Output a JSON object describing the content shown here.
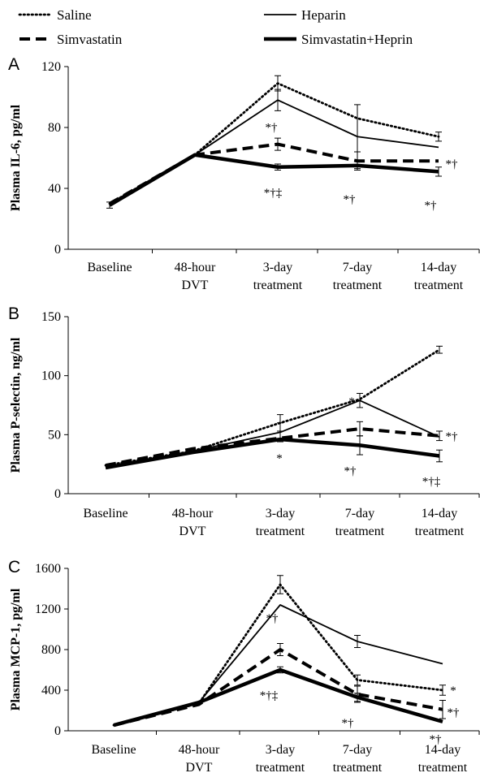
{
  "legend": [
    {
      "name": "Saline",
      "style": "dotted"
    },
    {
      "name": "Heparin",
      "style": "thin"
    },
    {
      "name": "Simvastatin",
      "style": "dashed"
    },
    {
      "name": "Simvastatin+Heprin",
      "style": "thick"
    }
  ],
  "chart_data": [
    {
      "type": "line",
      "panel": "A",
      "ylabel": "Plasma IL-6, pg/ml",
      "ylim": [
        0,
        120
      ],
      "yticks": [
        "0",
        "40",
        "80",
        "120"
      ],
      "categories": [
        [
          "Baseline"
        ],
        [
          "48-hour",
          "DVT"
        ],
        [
          "3-day",
          "treatment"
        ],
        [
          "7-day",
          "treatment"
        ],
        [
          "14-day",
          "treatment"
        ]
      ],
      "series": [
        {
          "name": "Saline",
          "values": [
            30,
            62,
            109,
            86,
            74
          ],
          "err": [
            0,
            0,
            5,
            0,
            3
          ]
        },
        {
          "name": "Heparin",
          "values": [
            30,
            62,
            98,
            74,
            67
          ],
          "err": [
            0,
            0,
            7,
            21,
            0
          ]
        },
        {
          "name": "Simvastatin",
          "values": [
            30,
            62,
            69,
            58,
            58
          ],
          "err": [
            0,
            0,
            4,
            6,
            0
          ]
        },
        {
          "name": "Simvastatin+Heprin",
          "values": [
            29,
            62,
            54,
            55,
            51
          ],
          "err": [
            2,
            0,
            2,
            0,
            3
          ]
        }
      ],
      "annotations": [
        "*†",
        "*†‡",
        "*†",
        "*†",
        "*†"
      ]
    },
    {
      "type": "line",
      "panel": "B",
      "ylabel": "Plasma P-selectin, ng/ml",
      "ylim": [
        0,
        150
      ],
      "yticks": [
        "0",
        "50",
        "100",
        "150"
      ],
      "categories": [
        [
          "Baseline"
        ],
        [
          "48-hour",
          "DVT"
        ],
        [
          "3-day",
          "treatment"
        ],
        [
          "7-day",
          "treatment"
        ],
        [
          "14-day",
          "treatment"
        ]
      ],
      "series": [
        {
          "name": "Saline",
          "values": [
            24,
            36,
            60,
            80,
            122
          ],
          "err": [
            0,
            0,
            7,
            0,
            3
          ]
        },
        {
          "name": "Heparin",
          "values": [
            22,
            36,
            52,
            79,
            48
          ],
          "err": [
            0,
            0,
            8,
            6,
            0
          ]
        },
        {
          "name": "Simvastatin",
          "values": [
            24,
            38,
            47,
            55,
            49
          ],
          "err": [
            0,
            0,
            0,
            6,
            4
          ]
        },
        {
          "name": "Simvastatin+Heprin",
          "values": [
            22,
            35,
            46,
            41,
            32
          ],
          "err": [
            0,
            0,
            0,
            8,
            5
          ]
        }
      ],
      "annotations": [
        "*",
        "*†",
        "*",
        "*†",
        "*†‡"
      ]
    },
    {
      "type": "line",
      "panel": "C",
      "ylabel": "Plasma MCP-1, pg/ml",
      "ylim": [
        0,
        1600
      ],
      "yticks": [
        "0",
        "400",
        "800",
        "1200",
        "1600"
      ],
      "categories": [
        [
          "Baseline"
        ],
        [
          "48-hour",
          "DVT"
        ],
        [
          "3-day",
          "treatment"
        ],
        [
          "7-day",
          "treatment"
        ],
        [
          "14-day",
          "treatment"
        ]
      ],
      "series": [
        {
          "name": "Saline",
          "values": [
            55,
            270,
            1440,
            500,
            400
          ],
          "err": [
            0,
            0,
            90,
            50,
            50
          ]
        },
        {
          "name": "Heparin",
          "values": [
            55,
            280,
            1240,
            880,
            660
          ],
          "err": [
            0,
            0,
            0,
            60,
            0
          ]
        },
        {
          "name": "Simvastatin",
          "values": [
            55,
            260,
            800,
            360,
            210
          ],
          "err": [
            0,
            0,
            60,
            80,
            90
          ]
        },
        {
          "name": "Simvastatin+Heprin",
          "values": [
            55,
            280,
            600,
            330,
            90
          ],
          "err": [
            0,
            0,
            30,
            40,
            0
          ]
        }
      ],
      "annotations": [
        "*†",
        "*†‡",
        "*",
        "*†",
        "*",
        "*†",
        "*†"
      ]
    }
  ]
}
